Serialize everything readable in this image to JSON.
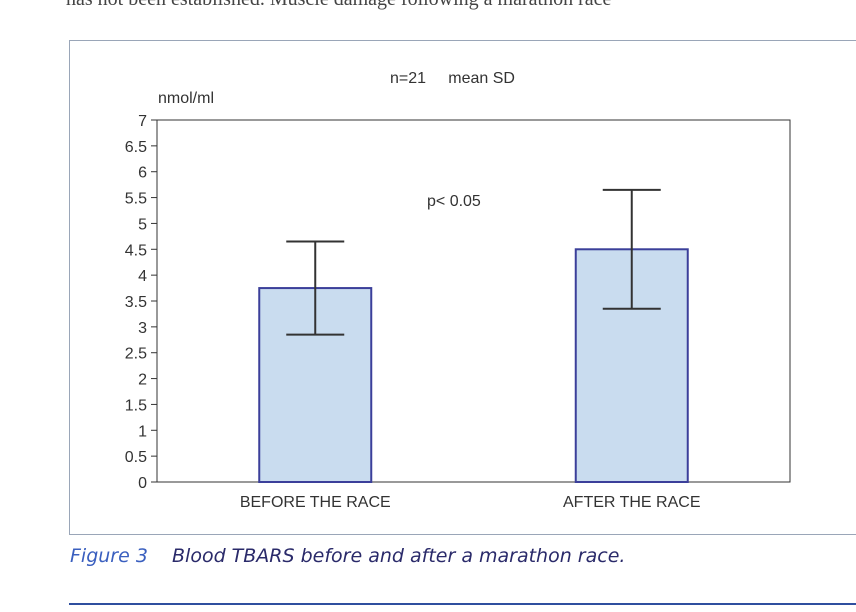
{
  "page": {
    "top_text": "has not been established. Muscle damage following a marathon race"
  },
  "caption": {
    "label": "Figure 3",
    "text": "Blood TBARS before and after a marathon race."
  },
  "chart_data": {
    "type": "bar",
    "categories": [
      "BEFORE THE RACE",
      "AFTER THE RACE"
    ],
    "values": [
      3.75,
      4.5
    ],
    "error": [
      0.9,
      1.15
    ],
    "ylabel": "nmol/ml",
    "annotation_top": "n=21     mean SD",
    "annotation_p": "p< 0.05",
    "ylim": [
      0,
      7
    ],
    "yticks": [
      0,
      0.5,
      1,
      1.5,
      2,
      2.5,
      3,
      3.5,
      4,
      4.5,
      5,
      5.5,
      6,
      6.5,
      7
    ],
    "ytick_labels": [
      "0",
      "0.5",
      "1",
      "1.5",
      "2",
      "2.5",
      "3",
      "3.5",
      "4",
      "4.5",
      "5",
      "5.5",
      "6",
      "6.5",
      "7"
    ],
    "grid": false,
    "bar_color": "#c9dcef",
    "bar_edge_color": "#3b3f9a",
    "error_color": "#333333"
  }
}
